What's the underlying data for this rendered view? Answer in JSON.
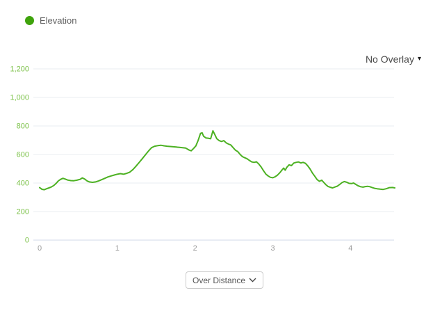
{
  "legend": {
    "label": "Elevation"
  },
  "overlay_dropdown": {
    "label": "No Overlay",
    "caret": "▾"
  },
  "bottom_dropdown": {
    "selected": "Over Distance"
  },
  "colors": {
    "line": "#4cb122",
    "legend_dot": "#3fa30c",
    "y_tick_label": "#7cc249",
    "x_tick_label": "#9b9b9b",
    "gridline": "#e9edf2",
    "axis_line": "#d9e1ee"
  },
  "chart_data": {
    "type": "line",
    "title": "",
    "xlabel": "",
    "ylabel": "",
    "x_axis_mode": "Over Distance",
    "grid": "horizontal",
    "legend_position": "top-left",
    "xlim": [
      0,
      4.56
    ],
    "ylim": [
      0,
      1200
    ],
    "x_ticks": [
      0,
      1,
      2,
      3,
      4
    ],
    "y_ticks": [
      0,
      200,
      400,
      600,
      800,
      1000,
      1200
    ],
    "y_tick_labels": [
      "0",
      "200",
      "400",
      "600",
      "800",
      "1,000",
      "1,200"
    ],
    "series": [
      {
        "name": "Elevation",
        "points": [
          [
            0.0,
            368
          ],
          [
            0.03,
            356
          ],
          [
            0.06,
            353
          ],
          [
            0.09,
            360
          ],
          [
            0.12,
            366
          ],
          [
            0.15,
            372
          ],
          [
            0.18,
            382
          ],
          [
            0.21,
            396
          ],
          [
            0.24,
            414
          ],
          [
            0.27,
            426
          ],
          [
            0.3,
            433
          ],
          [
            0.33,
            428
          ],
          [
            0.36,
            421
          ],
          [
            0.4,
            417
          ],
          [
            0.44,
            416
          ],
          [
            0.48,
            420
          ],
          [
            0.52,
            426
          ],
          [
            0.55,
            436
          ],
          [
            0.58,
            428
          ],
          [
            0.61,
            415
          ],
          [
            0.64,
            408
          ],
          [
            0.68,
            405
          ],
          [
            0.72,
            408
          ],
          [
            0.76,
            415
          ],
          [
            0.8,
            424
          ],
          [
            0.84,
            433
          ],
          [
            0.88,
            443
          ],
          [
            0.92,
            450
          ],
          [
            0.96,
            456
          ],
          [
            1.0,
            462
          ],
          [
            1.04,
            466
          ],
          [
            1.08,
            462
          ],
          [
            1.12,
            468
          ],
          [
            1.16,
            476
          ],
          [
            1.2,
            494
          ],
          [
            1.24,
            518
          ],
          [
            1.28,
            544
          ],
          [
            1.32,
            570
          ],
          [
            1.36,
            597
          ],
          [
            1.4,
            624
          ],
          [
            1.44,
            648
          ],
          [
            1.48,
            658
          ],
          [
            1.52,
            662
          ],
          [
            1.56,
            665
          ],
          [
            1.6,
            661
          ],
          [
            1.64,
            658
          ],
          [
            1.68,
            656
          ],
          [
            1.72,
            654
          ],
          [
            1.76,
            652
          ],
          [
            1.8,
            650
          ],
          [
            1.84,
            648
          ],
          [
            1.88,
            645
          ],
          [
            1.92,
            632
          ],
          [
            1.95,
            626
          ],
          [
            1.98,
            642
          ],
          [
            2.01,
            660
          ],
          [
            2.04,
            700
          ],
          [
            2.07,
            748
          ],
          [
            2.09,
            752
          ],
          [
            2.11,
            728
          ],
          [
            2.14,
            716
          ],
          [
            2.17,
            714
          ],
          [
            2.2,
            710
          ],
          [
            2.23,
            766
          ],
          [
            2.25,
            745
          ],
          [
            2.28,
            710
          ],
          [
            2.31,
            697
          ],
          [
            2.34,
            691
          ],
          [
            2.37,
            697
          ],
          [
            2.4,
            682
          ],
          [
            2.43,
            673
          ],
          [
            2.46,
            667
          ],
          [
            2.49,
            648
          ],
          [
            2.52,
            630
          ],
          [
            2.55,
            620
          ],
          [
            2.58,
            600
          ],
          [
            2.61,
            585
          ],
          [
            2.64,
            577
          ],
          [
            2.67,
            570
          ],
          [
            2.7,
            558
          ],
          [
            2.73,
            548
          ],
          [
            2.76,
            545
          ],
          [
            2.79,
            549
          ],
          [
            2.82,
            533
          ],
          [
            2.85,
            512
          ],
          [
            2.88,
            487
          ],
          [
            2.91,
            463
          ],
          [
            2.94,
            450
          ],
          [
            2.97,
            440
          ],
          [
            3.0,
            437
          ],
          [
            3.03,
            444
          ],
          [
            3.06,
            455
          ],
          [
            3.09,
            472
          ],
          [
            3.12,
            492
          ],
          [
            3.14,
            505
          ],
          [
            3.16,
            490
          ],
          [
            3.18,
            510
          ],
          [
            3.21,
            528
          ],
          [
            3.24,
            522
          ],
          [
            3.27,
            540
          ],
          [
            3.3,
            545
          ],
          [
            3.33,
            548
          ],
          [
            3.36,
            541
          ],
          [
            3.39,
            545
          ],
          [
            3.42,
            538
          ],
          [
            3.45,
            520
          ],
          [
            3.48,
            498
          ],
          [
            3.51,
            470
          ],
          [
            3.54,
            448
          ],
          [
            3.57,
            424
          ],
          [
            3.6,
            412
          ],
          [
            3.63,
            420
          ],
          [
            3.65,
            408
          ],
          [
            3.68,
            390
          ],
          [
            3.71,
            376
          ],
          [
            3.74,
            370
          ],
          [
            3.77,
            366
          ],
          [
            3.8,
            372
          ],
          [
            3.83,
            378
          ],
          [
            3.86,
            390
          ],
          [
            3.89,
            403
          ],
          [
            3.92,
            410
          ],
          [
            3.95,
            406
          ],
          [
            3.98,
            398
          ],
          [
            4.01,
            396
          ],
          [
            4.04,
            400
          ],
          [
            4.07,
            390
          ],
          [
            4.1,
            380
          ],
          [
            4.13,
            374
          ],
          [
            4.16,
            371
          ],
          [
            4.19,
            375
          ],
          [
            4.22,
            377
          ],
          [
            4.25,
            374
          ],
          [
            4.28,
            368
          ],
          [
            4.31,
            363
          ],
          [
            4.34,
            360
          ],
          [
            4.38,
            357
          ],
          [
            4.42,
            355
          ],
          [
            4.46,
            360
          ],
          [
            4.5,
            368
          ],
          [
            4.54,
            369
          ],
          [
            4.57,
            366
          ]
        ]
      }
    ]
  }
}
